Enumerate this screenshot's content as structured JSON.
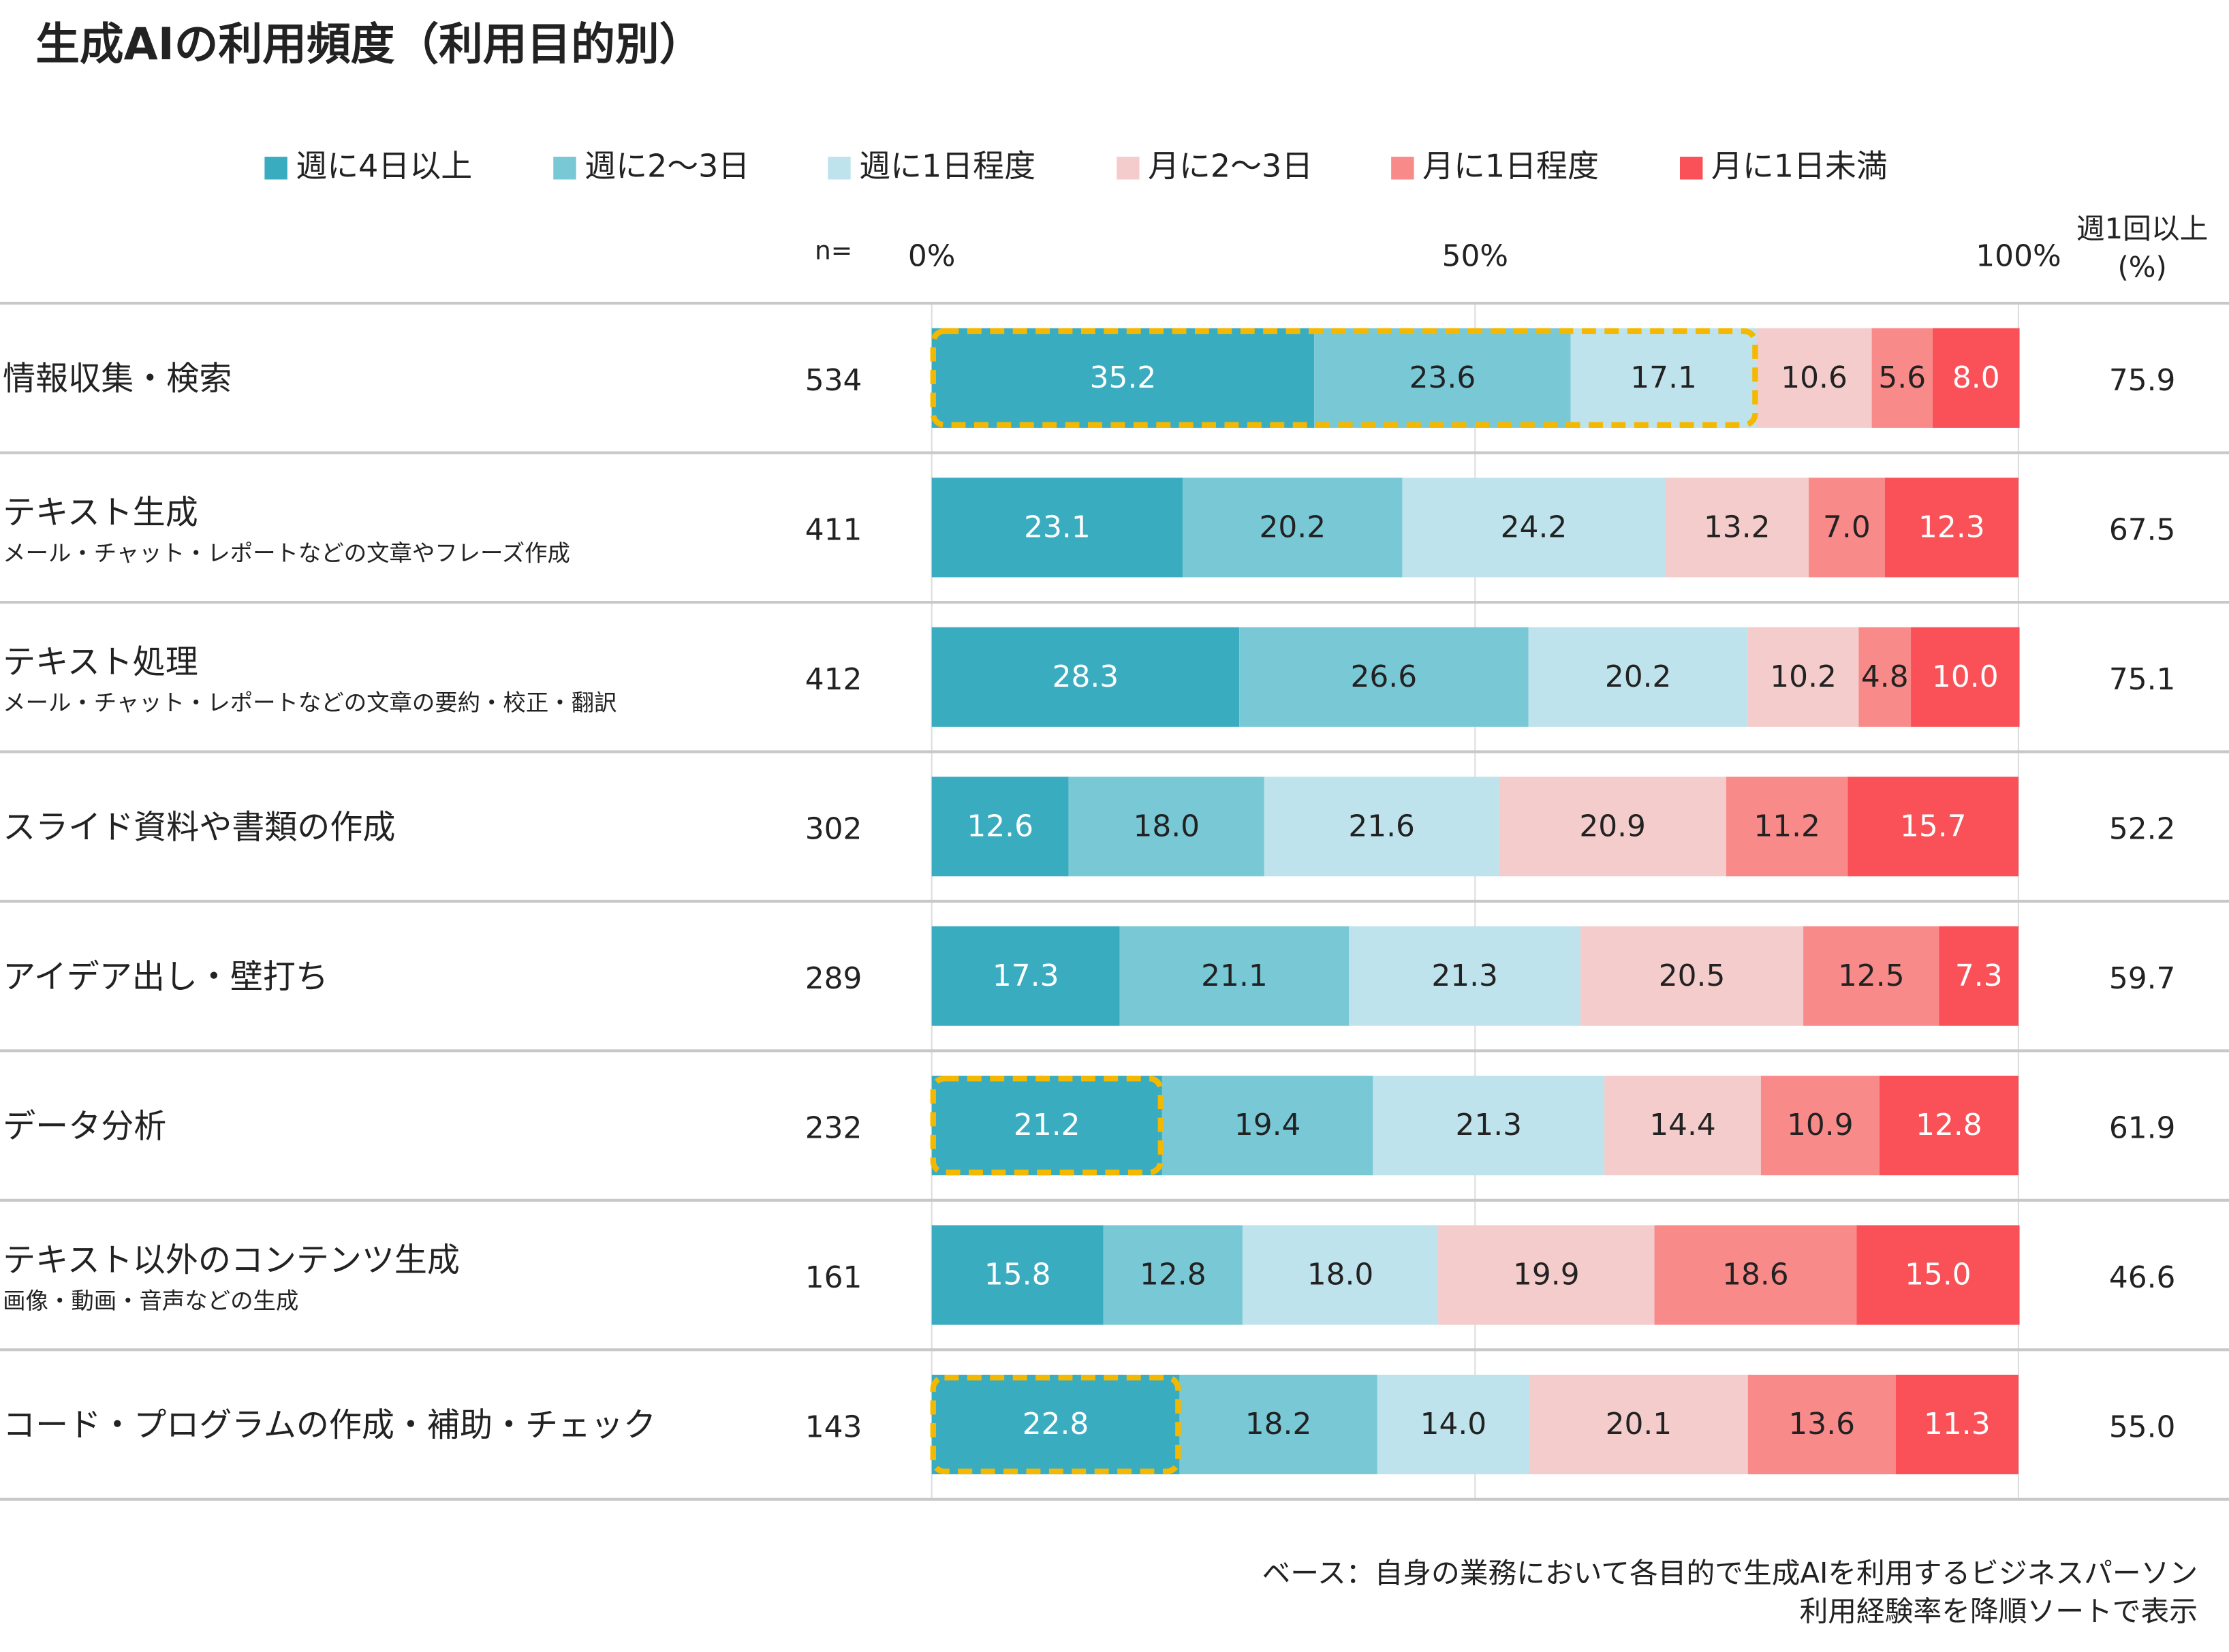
{
  "chart_data": {
    "type": "stacked_bar_h",
    "title": "生成AIの利用頻度（利用目的別）",
    "categories": [
      "情報収集・検索",
      "テキスト生成",
      "テキスト処理",
      "スライド資料や書類の作成",
      "アイデア出し・壁打ち",
      "データ分析",
      "テキスト以外のコンテンツ生成",
      "コード・プログラムの作成・補助・チェック"
    ],
    "subcategories": [
      null,
      "メール・チャット・レポートなどの文章やフレーズ作成",
      "メール・チャット・レポートなどの文章の要約・校正・翻訳",
      null,
      null,
      null,
      "画像・動画・音声などの生成",
      null
    ],
    "n_label": "n=",
    "n": [
      534,
      411,
      412,
      302,
      289,
      232,
      161,
      143
    ],
    "weekly_header": [
      "週1回以上",
      "(%)"
    ],
    "weekly_values": [
      75.9,
      67.5,
      75.1,
      52.2,
      59.7,
      61.9,
      46.6,
      55.0
    ],
    "weekly_labels": [
      "75.9",
      "67.5",
      "75.1",
      "52.2",
      "59.7",
      "61.9",
      "46.6",
      "55.0"
    ],
    "xlim": [
      0,
      100
    ],
    "xticks": [
      {
        "value": 0,
        "label": "0%"
      },
      {
        "value": 50,
        "label": "50%"
      },
      {
        "value": 100,
        "label": "100%"
      }
    ],
    "grid": true,
    "legend": "top",
    "series": [
      {
        "name": "週に4日以上",
        "color": "#3aacc0",
        "label_color": "#ffffff",
        "values": [
          35.2,
          23.1,
          28.3,
          12.6,
          17.3,
          21.2,
          15.8,
          22.8
        ],
        "value_labels": [
          "35.2",
          "23.1",
          "28.3",
          "12.6",
          "17.3",
          "21.2",
          "15.8",
          "22.8"
        ]
      },
      {
        "name": "週に2～3日",
        "color": "#79c8d6",
        "label_color": "#222222",
        "values": [
          23.6,
          20.2,
          26.6,
          18.0,
          21.1,
          19.4,
          12.8,
          18.2
        ],
        "value_labels": [
          "23.6",
          "20.2",
          "26.6",
          "18.0",
          "21.1",
          "19.4",
          "12.8",
          "18.2"
        ]
      },
      {
        "name": "週に1日程度",
        "color": "#bfe3ec",
        "label_color": "#222222",
        "values": [
          17.1,
          24.2,
          20.2,
          21.6,
          21.3,
          21.3,
          18.0,
          14.0
        ],
        "value_labels": [
          "17.1",
          "24.2",
          "20.2",
          "21.6",
          "21.3",
          "21.3",
          "18.0",
          "14.0"
        ]
      },
      {
        "name": "月に2～3日",
        "color": "#f4cccc",
        "label_color": "#222222",
        "values": [
          10.6,
          13.2,
          10.2,
          20.9,
          20.5,
          14.4,
          19.9,
          20.1
        ],
        "value_labels": [
          "10.6",
          "13.2",
          "10.2",
          "20.9",
          "20.5",
          "14.4",
          "19.9",
          "20.1"
        ]
      },
      {
        "name": "月に1日程度",
        "color": "#f98a8a",
        "label_color": "#222222",
        "values": [
          5.6,
          7.0,
          4.8,
          11.2,
          12.5,
          10.9,
          18.6,
          13.6
        ],
        "value_labels": [
          "5.6",
          "7.0",
          "4.8",
          "11.2",
          "12.5",
          "10.9",
          "18.6",
          "13.6"
        ]
      },
      {
        "name": "月に1日未満",
        "color": "#f95157",
        "label_color": "#ffffff",
        "values": [
          8.0,
          12.3,
          10.0,
          15.7,
          7.3,
          12.8,
          15.0,
          11.3
        ],
        "value_labels": [
          "8.0",
          "12.3",
          "10.0",
          "15.7",
          "7.3",
          "12.8",
          "15.0",
          "11.3"
        ]
      }
    ],
    "highlights": [
      {
        "category": 0,
        "first_series": 0,
        "last_series": 2
      },
      {
        "category": 5,
        "first_series": 0,
        "last_series": 0
      },
      {
        "category": 7,
        "first_series": 0,
        "last_series": 0
      }
    ],
    "highlight_color": "#f5b800",
    "footnotes": [
      "ベース：自身の業務において各目的で生成AIを利用するビジネスパーソン",
      "利用経験率を降順ソートで表示"
    ]
  }
}
